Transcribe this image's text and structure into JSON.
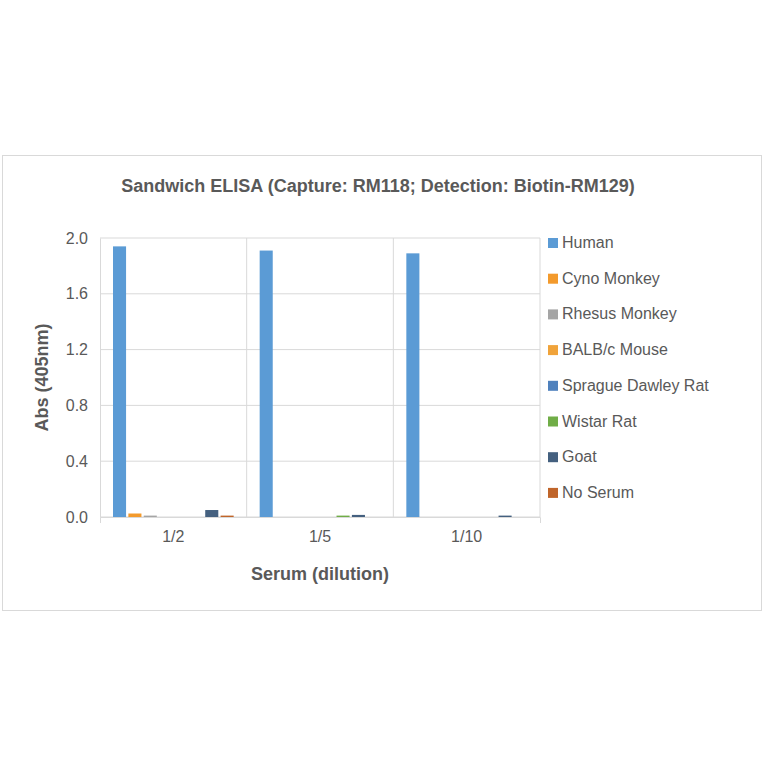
{
  "chart_data": {
    "type": "bar",
    "title": "Sandwich ELISA (Capture:  RM118; Detection: Biotin-RM129)",
    "x_label": "Serum (dilution)",
    "y_label": "Abs (405nm)",
    "categories": [
      "1/2",
      "1/5",
      "1/10"
    ],
    "series": [
      {
        "name": "Human",
        "color": "#5b9bd5",
        "values": [
          1.94,
          1.91,
          1.89
        ]
      },
      {
        "name": "Cyno Monkey",
        "color": "#f39a2c",
        "values": [
          0.025,
          0,
          0
        ]
      },
      {
        "name": "Rhesus Monkey",
        "color": "#a5a5a5",
        "values": [
          0.01,
          0,
          0
        ]
      },
      {
        "name": "BALB/c Mouse",
        "color": "#f0a33a",
        "values": [
          0,
          0,
          0
        ]
      },
      {
        "name": "Sprague Dawley Rat",
        "color": "#4f81bd",
        "values": [
          0,
          0,
          0
        ]
      },
      {
        "name": "Wistar Rat",
        "color": "#70ad47",
        "values": [
          0,
          0.01,
          0
        ]
      },
      {
        "name": "Goat",
        "color": "#44607f",
        "values": [
          0.05,
          0.015,
          0.01
        ]
      },
      {
        "name": "No Serum",
        "color": "#c0652a",
        "values": [
          0.01,
          0,
          0
        ]
      }
    ],
    "ylim": [
      0,
      2
    ],
    "yticks": [
      {
        "value": 0,
        "label": "0.0"
      },
      0.4,
      0.8,
      1.2,
      1.6,
      {
        "value": 2,
        "label": "2.0"
      }
    ],
    "grid": true,
    "legend": "right"
  }
}
